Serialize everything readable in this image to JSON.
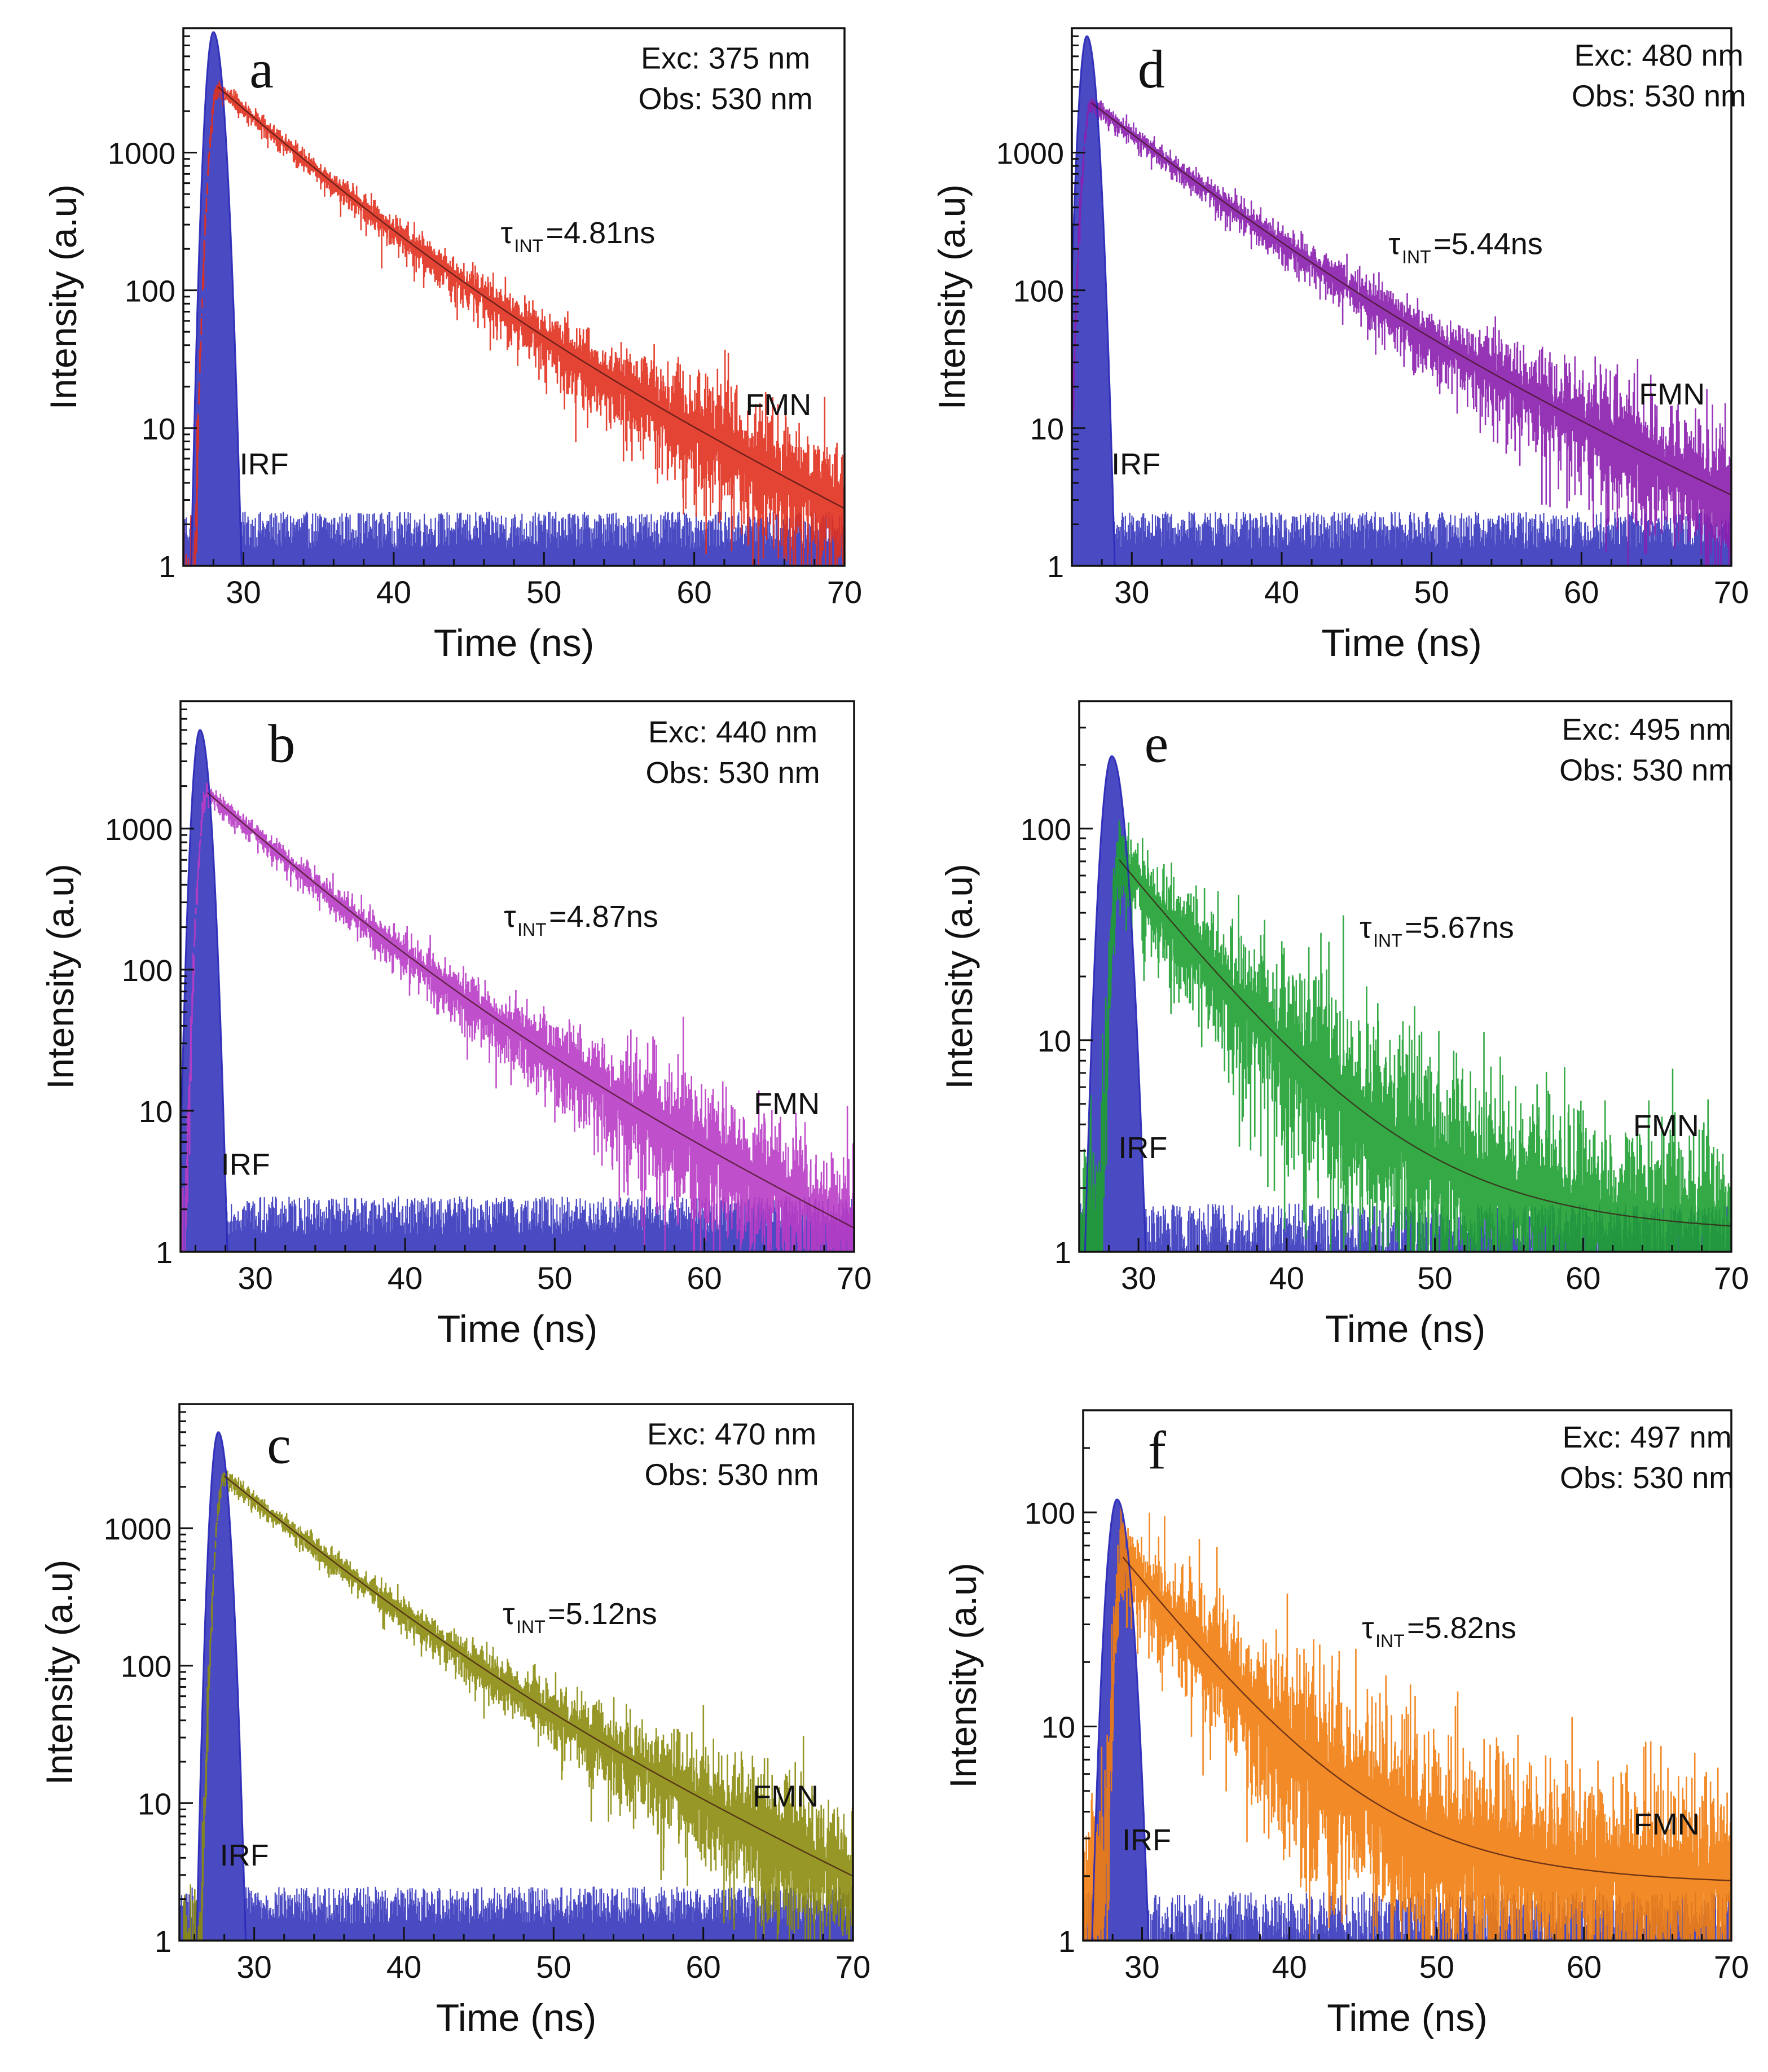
{
  "chart_data": [
    {
      "type": "line",
      "panel": "a",
      "excitation": "Exc: 375 nm",
      "observation": "Obs: 530 nm",
      "tau_symbol": "τ",
      "tau_sub": "INT",
      "tau_value": "=4.81ns",
      "xlabel": "Time (ns)",
      "ylabel": "Intensity (a.u)",
      "xlim": [
        26,
        70
      ],
      "ylim": [
        1,
        8000
      ],
      "xticks": [
        30,
        40,
        50,
        60,
        70
      ],
      "yticks": [
        1,
        10,
        100,
        1000
      ],
      "x_tick_labels": [
        "30",
        "40",
        "50",
        "60",
        "70"
      ],
      "y_tick_labels": [
        "1",
        "10",
        "100",
        "1000"
      ],
      "series": [
        {
          "name": "FMN",
          "color": "#e0301e",
          "peak_x": 28.3,
          "peak_y": 3000,
          "tau1": 4.3,
          "tau2": 8.0,
          "frac1": 0.85,
          "baseline": 0,
          "noise_floor": 2.2
        },
        {
          "name": "IRF",
          "color": "#2a2ab8",
          "peak_x": 28.0,
          "peak_y": 7500,
          "width": 0.35,
          "baseline": 1.9
        }
      ]
    },
    {
      "type": "line",
      "panel": "d",
      "excitation": "Exc: 480 nm",
      "observation": "Obs: 530 nm",
      "tau_symbol": "τ",
      "tau_sub": "INT",
      "tau_value": "=5.44ns",
      "xlabel": "Time (ns)",
      "ylabel": "Intensity (a.u)",
      "xlim": [
        26,
        70
      ],
      "ylim": [
        1,
        8000
      ],
      "xticks": [
        30,
        40,
        50,
        60,
        70
      ],
      "yticks": [
        1,
        10,
        100,
        1000
      ],
      "x_tick_labels": [
        "30",
        "40",
        "50",
        "60",
        "70"
      ],
      "y_tick_labels": [
        "1",
        "10",
        "100",
        "1000"
      ],
      "series": [
        {
          "name": "FMN",
          "color": "#8a1fae",
          "peak_x": 27.3,
          "peak_y": 2300,
          "tau1": 4.8,
          "tau2": 9.0,
          "frac1": 0.85,
          "baseline": 0,
          "noise_floor": 2.5
        },
        {
          "name": "IRF",
          "color": "#2a2ab8",
          "peak_x": 27.0,
          "peak_y": 7000,
          "width": 0.35,
          "baseline": 1.9
        }
      ]
    },
    {
      "type": "line",
      "panel": "b",
      "excitation": "Exc: 440 nm",
      "observation": "Obs: 530 nm",
      "tau_symbol": "τ",
      "tau_sub": "INT",
      "tau_value": "=4.87ns",
      "xlabel": "Time (ns)",
      "ylabel": "Intensity (a.u)",
      "xlim": [
        25,
        70
      ],
      "ylim": [
        1,
        8000
      ],
      "xticks": [
        30,
        40,
        50,
        60,
        70
      ],
      "yticks": [
        1,
        10,
        100,
        1000
      ],
      "x_tick_labels": [
        "30",
        "40",
        "50",
        "60",
        "70"
      ],
      "y_tick_labels": [
        "1",
        "10",
        "100",
        "1000"
      ],
      "series": [
        {
          "name": "FMN",
          "color": "#b83cc4",
          "peak_x": 26.8,
          "peak_y": 1800,
          "tau1": 4.4,
          "tau2": 8.2,
          "frac1": 0.85,
          "baseline": 0,
          "noise_floor": 2.2
        },
        {
          "name": "IRF",
          "color": "#2a2ab8",
          "peak_x": 26.3,
          "peak_y": 5000,
          "width": 0.35,
          "baseline": 1.9
        }
      ]
    },
    {
      "type": "line",
      "panel": "e",
      "excitation": "Exc: 495 nm",
      "observation": "Obs: 530 nm",
      "tau_symbol": "τ",
      "tau_sub": "INT",
      "tau_value": "=5.67ns",
      "xlabel": "Time (ns)",
      "ylabel": "Intensity (a.u)",
      "xlim": [
        26,
        70
      ],
      "ylim": [
        1,
        400
      ],
      "xticks": [
        30,
        40,
        50,
        60,
        70
      ],
      "yticks": [
        1,
        10,
        100
      ],
      "x_tick_labels": [
        "30",
        "40",
        "50",
        "60",
        "70"
      ],
      "y_tick_labels": [
        "1",
        "10",
        "100"
      ],
      "series": [
        {
          "name": "FMN",
          "color": "#1ea032",
          "peak_x": 28.7,
          "peak_y": 70,
          "tau1": 4.8,
          "tau2": 10.0,
          "frac1": 0.9,
          "baseline": 1.2,
          "noise_floor": 1.3
        },
        {
          "name": "IRF",
          "color": "#2a2ab8",
          "peak_x": 28.2,
          "peak_y": 220,
          "width": 0.55,
          "baseline": 1.3
        }
      ]
    },
    {
      "type": "line",
      "panel": "c",
      "excitation": "Exc: 470 nm",
      "observation": "Obs: 530 nm",
      "tau_symbol": "τ",
      "tau_sub": "INT",
      "tau_value": "=5.12ns",
      "xlabel": "Time (ns)",
      "ylabel": "Intensity (a.u)",
      "xlim": [
        25,
        70
      ],
      "ylim": [
        1,
        8000
      ],
      "xticks": [
        30,
        40,
        50,
        60,
        70
      ],
      "yticks": [
        1,
        10,
        100,
        1000
      ],
      "x_tick_labels": [
        "30",
        "40",
        "50",
        "60",
        "70"
      ],
      "y_tick_labels": [
        "1",
        "10",
        "100",
        "1000"
      ],
      "series": [
        {
          "name": "FMN",
          "color": "#8b8c10",
          "peak_x": 28.0,
          "peak_y": 2400,
          "tau1": 4.6,
          "tau2": 8.6,
          "frac1": 0.85,
          "baseline": 0,
          "noise_floor": 2.4
        },
        {
          "name": "IRF",
          "color": "#2a2ab8",
          "peak_x": 27.6,
          "peak_y": 5000,
          "width": 0.35,
          "baseline": 1.9
        }
      ]
    },
    {
      "type": "line",
      "panel": "f",
      "excitation": "Exc: 497 nm",
      "observation": "Obs: 530 nm",
      "tau_symbol": "τ",
      "tau_sub": "INT",
      "tau_value": "=5.82ns",
      "xlabel": "Time (ns)",
      "ylabel": "Intensity (a.u)",
      "xlim": [
        26,
        70
      ],
      "ylim": [
        1,
        300
      ],
      "xticks": [
        30,
        40,
        50,
        60,
        70
      ],
      "yticks": [
        1,
        10,
        100
      ],
      "x_tick_labels": [
        "30",
        "40",
        "50",
        "60",
        "70"
      ],
      "y_tick_labels": [
        "1",
        "10",
        "100"
      ],
      "series": [
        {
          "name": "FMN",
          "color": "#f07d10",
          "peak_x": 28.7,
          "peak_y": 60,
          "tau1": 4.8,
          "tau2": 10.0,
          "frac1": 0.9,
          "baseline": 1.8,
          "noise_floor": 1.9
        },
        {
          "name": "IRF",
          "color": "#2a2ab8",
          "peak_x": 28.3,
          "peak_y": 115,
          "width": 0.55,
          "baseline": 1.3
        }
      ]
    }
  ]
}
